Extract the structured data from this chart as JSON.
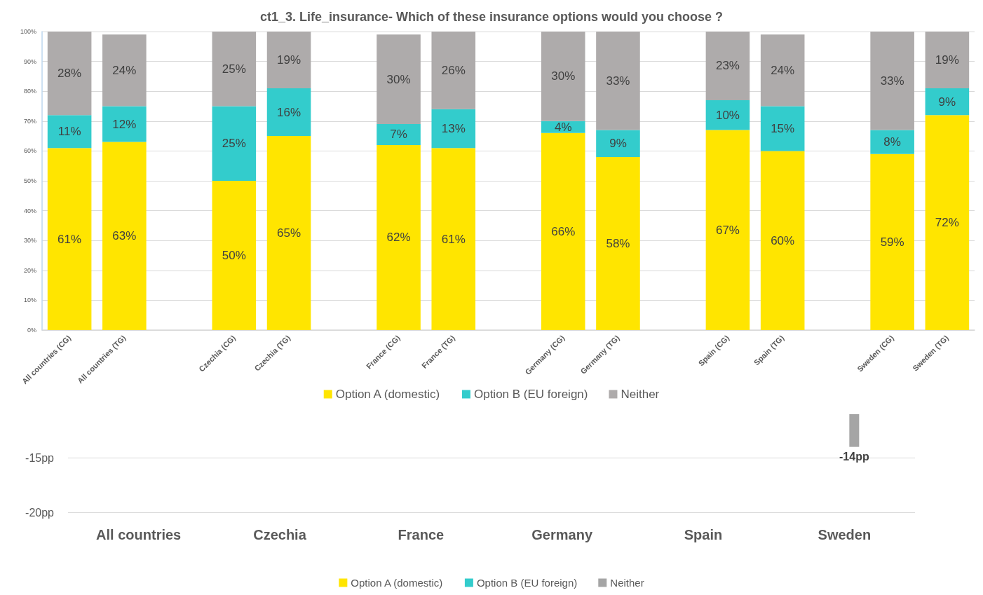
{
  "chart_data": [
    {
      "type": "bar",
      "title": "ct1_3. Life_insurance- Which of these insurance options would you choose ?",
      "stacked": true,
      "categories": [
        "All countries (CG)",
        "All countries (TG)",
        null,
        "Czechia (CG)",
        "Czechia (TG)",
        null,
        "France (CG)",
        "France (TG)",
        null,
        "Germany (CG)",
        "Germany (TG)",
        null,
        "Spain (CG)",
        "Spain (TG)",
        null,
        "Sweden (CG)",
        "Sweden (TG)"
      ],
      "series": [
        {
          "name": "Option A (domestic)",
          "color": "#ffe500",
          "values": [
            61,
            63,
            null,
            50,
            65,
            null,
            62,
            61,
            null,
            66,
            58,
            null,
            67,
            60,
            null,
            59,
            72
          ],
          "value_labels": [
            "61%",
            "63%",
            null,
            "50%",
            "65%",
            null,
            "62%",
            "61%",
            null,
            "66%",
            "58%",
            null,
            "67%",
            "60%",
            null,
            "59%",
            "72%"
          ]
        },
        {
          "name": "Option B (EU foreign)",
          "color": "#33cccc",
          "values": [
            11,
            12,
            null,
            25,
            16,
            null,
            7,
            13,
            null,
            4,
            9,
            null,
            10,
            15,
            null,
            8,
            9
          ],
          "value_labels": [
            "11%",
            "12%",
            null,
            "25%",
            "16%",
            null,
            "7%",
            "13%",
            null,
            "4%",
            "9%",
            null,
            "10%",
            "15%",
            null,
            "8%",
            "9%"
          ]
        },
        {
          "name": "Neither",
          "color": "#aeabab",
          "values": [
            28,
            24,
            null,
            25,
            19,
            null,
            30,
            26,
            null,
            30,
            33,
            null,
            23,
            24,
            null,
            33,
            19
          ],
          "value_labels": [
            "28%",
            "24%",
            null,
            "25%",
            "19%",
            null,
            "30%",
            "26%",
            null,
            "30%",
            "33%",
            null,
            "23%",
            "24%",
            null,
            "33%",
            "19%"
          ]
        }
      ],
      "ylim": [
        0,
        100
      ],
      "yticks": [
        {
          "value": 0,
          "label": "0%"
        },
        {
          "value": 10,
          "label": "10%"
        },
        {
          "value": 20,
          "label": "20%"
        },
        {
          "value": 30,
          "label": "30%"
        },
        {
          "value": 40,
          "label": "40%"
        },
        {
          "value": 50,
          "label": "50%"
        },
        {
          "value": 60,
          "label": "60%"
        },
        {
          "value": 70,
          "label": "70%"
        },
        {
          "value": 80,
          "label": "80%"
        },
        {
          "value": 90,
          "label": "90%"
        },
        {
          "value": 100,
          "label": "100%"
        }
      ],
      "grid": "y",
      "legend": "bottom"
    },
    {
      "type": "bar",
      "categories": [
        "All countries",
        "Czechia",
        "France",
        "Germany",
        "Spain",
        "Sweden"
      ],
      "series": [
        {
          "name": "Option A (domestic)",
          "color": "#ffe500",
          "values": [
            null,
            null,
            null,
            null,
            null,
            null
          ]
        },
        {
          "name": "Option B (EU foreign)",
          "color": "#33cccc",
          "values": [
            null,
            null,
            null,
            null,
            null,
            null
          ]
        },
        {
          "name": "Neither",
          "color": "#a5a5a5",
          "values": [
            null,
            null,
            null,
            null,
            null,
            -14
          ],
          "value_labels": [
            null,
            null,
            null,
            null,
            null,
            "-14pp"
          ]
        }
      ],
      "ylim": [
        -20,
        -11
      ],
      "yticks": [
        {
          "value": -20,
          "label": "-20pp"
        },
        {
          "value": -15,
          "label": "-15pp"
        }
      ],
      "grid": "y",
      "legend": "bottom"
    }
  ]
}
